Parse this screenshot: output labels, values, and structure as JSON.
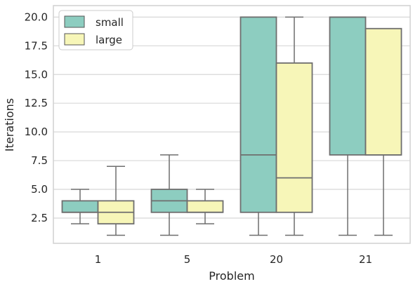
{
  "chart_data": {
    "type": "boxplot",
    "xlabel": "Problem",
    "ylabel": "Iterations",
    "categories": [
      "1",
      "5",
      "20",
      "21"
    ],
    "ylim": [
      0.3,
      21.0
    ],
    "yticks": [
      "2.5",
      "5.0",
      "7.5",
      "10.0",
      "12.5",
      "15.0",
      "17.5",
      "20.0"
    ],
    "grid": true,
    "legend_position": "top-left",
    "series": [
      {
        "name": "small",
        "color": "#8dcdc0",
        "boxes": [
          {
            "whisker_low": 2,
            "q1": 3,
            "median": 3,
            "q3": 4,
            "whisker_high": 5
          },
          {
            "whisker_low": 1,
            "q1": 3,
            "median": 4,
            "q3": 5,
            "whisker_high": 8
          },
          {
            "whisker_low": 1,
            "q1": 3,
            "median": 8,
            "q3": 20,
            "whisker_high": 20
          },
          {
            "whisker_low": 1,
            "q1": 8,
            "median": 20,
            "q3": 20,
            "whisker_high": 20
          }
        ]
      },
      {
        "name": "large",
        "color": "#f7f6b8",
        "boxes": [
          {
            "whisker_low": 1,
            "q1": 2,
            "median": 3,
            "q3": 4,
            "whisker_high": 7
          },
          {
            "whisker_low": 2,
            "q1": 3,
            "median": 3,
            "q3": 4,
            "whisker_high": 5
          },
          {
            "whisker_low": 1,
            "q1": 3,
            "median": 6,
            "q3": 16,
            "whisker_high": 20
          },
          {
            "whisker_low": 1,
            "q1": 8,
            "median": 8,
            "q3": 19,
            "whisker_high": 19
          }
        ]
      }
    ]
  }
}
